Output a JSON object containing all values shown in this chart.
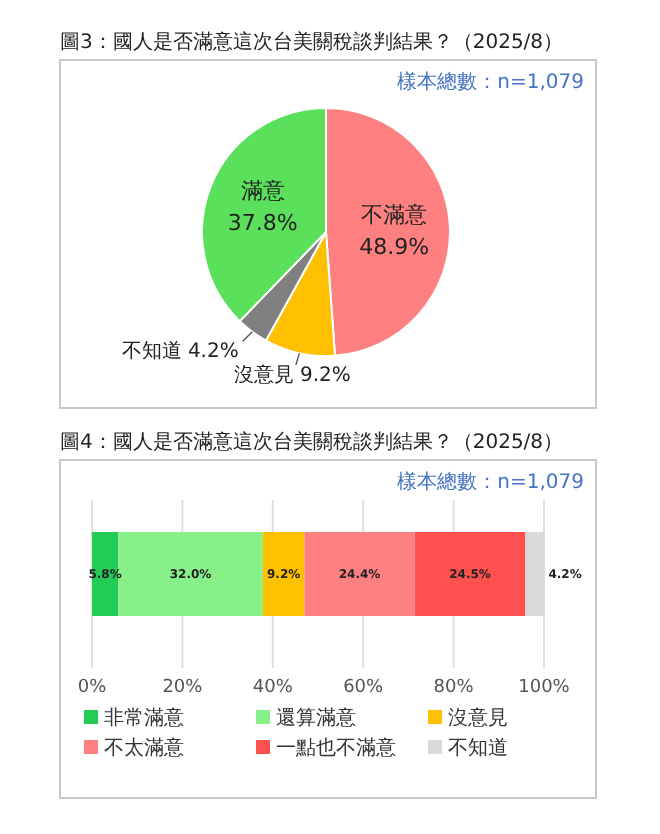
{
  "chart_data": [
    {
      "type": "pie",
      "title": "圖3：國人是否滿意這次台美關稅談判結果？（2025/8）",
      "annotations": [
        "樣本總數：n=1,079"
      ],
      "categories": [
        "不滿意",
        "沒意見",
        "不知道",
        "滿意"
      ],
      "values": [
        48.9,
        9.2,
        4.2,
        37.8
      ],
      "colors": [
        "#ff8080",
        "#ffc000",
        "#808080",
        "#5ae05a"
      ],
      "value_labels": [
        "48.9%",
        "9.2%",
        "4.2%",
        "37.8%"
      ]
    },
    {
      "type": "bar",
      "orientation": "horizontal",
      "stacked": true,
      "title": "圖4：國人是否滿意這次台美關稅談判結果？（2025/8）",
      "annotations": [
        "樣本總數：n=1,079"
      ],
      "categories": [
        null
      ],
      "series": [
        {
          "name": "非常滿意",
          "color": "#22cc55",
          "values": [
            5.8
          ],
          "value_labels": [
            "5.8%"
          ]
        },
        {
          "name": "還算滿意",
          "color": "#88f088",
          "values": [
            32.0
          ],
          "value_labels": [
            "32.0%"
          ]
        },
        {
          "name": "沒意見",
          "color": "#ffc000",
          "values": [
            9.2
          ],
          "value_labels": [
            "9.2%"
          ]
        },
        {
          "name": "不太滿意",
          "color": "#ff8080",
          "values": [
            24.4
          ],
          "value_labels": [
            "24.4%"
          ]
        },
        {
          "name": "一點也不滿意",
          "color": "#ff5050",
          "values": [
            24.5
          ],
          "value_labels": [
            "24.5%"
          ]
        },
        {
          "name": "不知道",
          "color": "#d9d9d9",
          "values": [
            4.2
          ],
          "value_labels": [
            "4.2%"
          ]
        }
      ],
      "xlim": [
        0,
        100
      ],
      "xticks": [
        {
          "value": 0,
          "label": "0%"
        },
        {
          "value": 20,
          "label": "20%"
        },
        {
          "value": 40,
          "label": "40%"
        },
        {
          "value": 60,
          "label": "60%"
        },
        {
          "value": 80,
          "label": "80%"
        },
        {
          "value": 100,
          "label": "100%"
        }
      ],
      "grid": "x",
      "legend": "bottom"
    }
  ]
}
